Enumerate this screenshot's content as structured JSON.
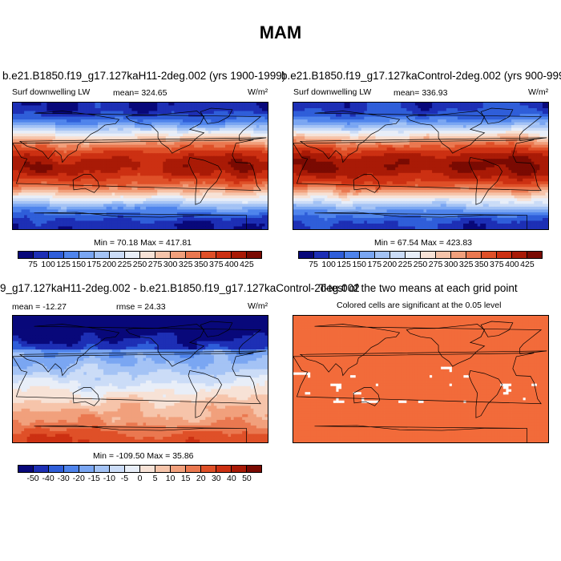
{
  "figure": {
    "title": "MAM"
  },
  "chart_data": [
    {
      "type": "heatmap",
      "panel": "top-left",
      "run_title": "b.e21.B1850.f19_g17.127kaH11-2deg.002 (yrs 1900-1999)",
      "variable": "Surf downwelling LW",
      "mean_text": "mean= 324.65",
      "units": "W/m²",
      "minmax_text": "Min =  70.18 Max = 417.81",
      "colorbar": {
        "labels": [
          "75",
          "100",
          "125",
          "150",
          "175",
          "200",
          "225",
          "250",
          "275",
          "300",
          "325",
          "350",
          "375",
          "400",
          "425"
        ],
        "colors": [
          "#08087a",
          "#1d2fb5",
          "#2f5ed9",
          "#4f84ec",
          "#7aa6f2",
          "#a4c3f5",
          "#cbdcf7",
          "#e8eef8",
          "#f7e2d6",
          "#f6c4aa",
          "#f1a07c",
          "#ea7850",
          "#df5028",
          "#cc3012",
          "#a91a06",
          "#7a0a02"
        ]
      },
      "field_description": "Latitudinal pattern: high values (~400) in tropics, decreasing poleward to ~75-150 over polar regions"
    },
    {
      "type": "heatmap",
      "panel": "top-right",
      "run_title": "b.e21.B1850.f19_g17.127kaControl-2deg.002 (yrs 900-999)",
      "variable": "Surf downwelling LW",
      "mean_text": "mean= 336.93",
      "units": "W/m²",
      "minmax_text": "Min =  67.54 Max = 423.83",
      "colorbar": {
        "labels": [
          "75",
          "100",
          "125",
          "150",
          "175",
          "200",
          "225",
          "250",
          "275",
          "300",
          "325",
          "350",
          "375",
          "400",
          "425"
        ],
        "colors": [
          "#08087a",
          "#1d2fb5",
          "#2f5ed9",
          "#4f84ec",
          "#7aa6f2",
          "#a4c3f5",
          "#cbdcf7",
          "#e8eef8",
          "#f7e2d6",
          "#f6c4aa",
          "#f1a07c",
          "#ea7850",
          "#df5028",
          "#cc3012",
          "#a91a06",
          "#7a0a02"
        ]
      }
    },
    {
      "type": "heatmap",
      "panel": "bottom-left",
      "run_title": "9_g17.127kaH11-2deg.002 - b.e21.B1850.f19_g17.127kaControl-2deg.002",
      "mean_text": "mean = -12.27",
      "rmse_text": "rmse =  24.33",
      "units": "W/m²",
      "minmax_text": "Min = -109.50 Max =  35.86",
      "colorbar": {
        "labels": [
          "-50",
          "-40",
          "-30",
          "-20",
          "-15",
          "-10",
          "-5",
          "0",
          "5",
          "10",
          "15",
          "20",
          "30",
          "40",
          "50"
        ],
        "colors": [
          "#08087a",
          "#1d2fb5",
          "#2f5ed9",
          "#4f84ec",
          "#7aa6f2",
          "#a4c3f5",
          "#cbdcf7",
          "#e8eef8",
          "#f7e2d6",
          "#f6c4aa",
          "#f1a07c",
          "#ea7850",
          "#df5028",
          "#cc3012",
          "#a91a06",
          "#7a0a02"
        ]
      }
    },
    {
      "type": "heatmap",
      "panel": "bottom-right",
      "run_title": "T-test of the two means at each grid point",
      "subtitle": "Colored cells are significant at the 0.05 level",
      "fill_color": "#f26b3a"
    }
  ]
}
